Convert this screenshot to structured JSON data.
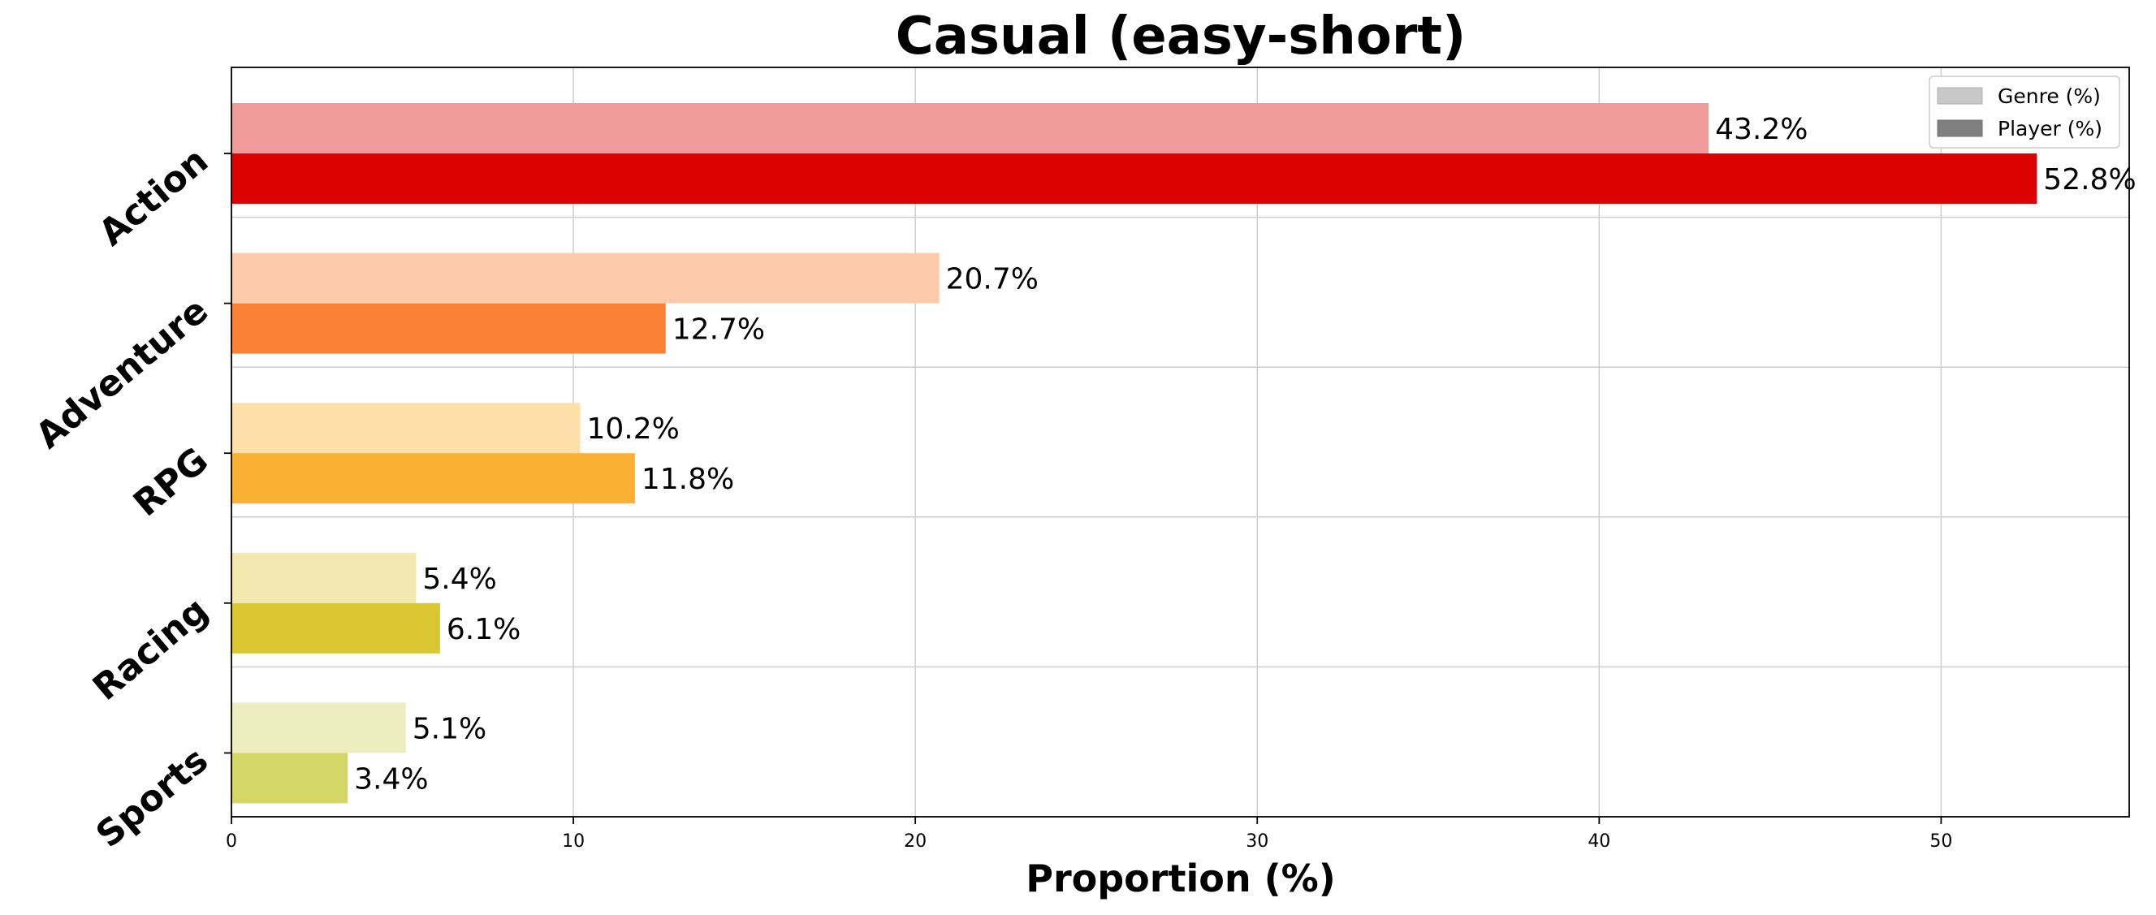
{
  "chart_data": {
    "type": "bar",
    "orientation": "horizontal",
    "title": "Casual (easy-short)",
    "xlabel": "Proportion (%)",
    "ylabel": "",
    "categories": [
      "Action",
      "Adventure",
      "RPG",
      "Racing",
      "Sports"
    ],
    "series": [
      {
        "name": "Genre (%)",
        "values": [
          43.2,
          20.7,
          10.2,
          5.4,
          5.1
        ],
        "labels": [
          "43.2%",
          "20.7%",
          "10.2%",
          "5.4%",
          "5.1%"
        ],
        "colors": [
          "#f09b9a",
          "#fdcba9",
          "#fddfa9",
          "#f2e8b0",
          "#eeedbf"
        ],
        "legend_color": "#c8c8c8"
      },
      {
        "name": "Player (%)",
        "values": [
          52.8,
          12.7,
          11.8,
          6.1,
          3.4
        ],
        "labels": [
          "52.8%",
          "12.7%",
          "11.8%",
          "6.1%",
          "3.4%"
        ],
        "colors": [
          "#dd0202",
          "#fb8234",
          "#f9b033",
          "#dbc731",
          "#d4d765"
        ],
        "legend_color": "#808080"
      }
    ],
    "xlim": [
      0,
      55.5
    ],
    "xticks": [
      0,
      10,
      20,
      30,
      40,
      50
    ],
    "xtick_labels": [
      "0",
      "10",
      "20",
      "30",
      "40",
      "50"
    ],
    "grid": true,
    "legend": "top-right"
  }
}
